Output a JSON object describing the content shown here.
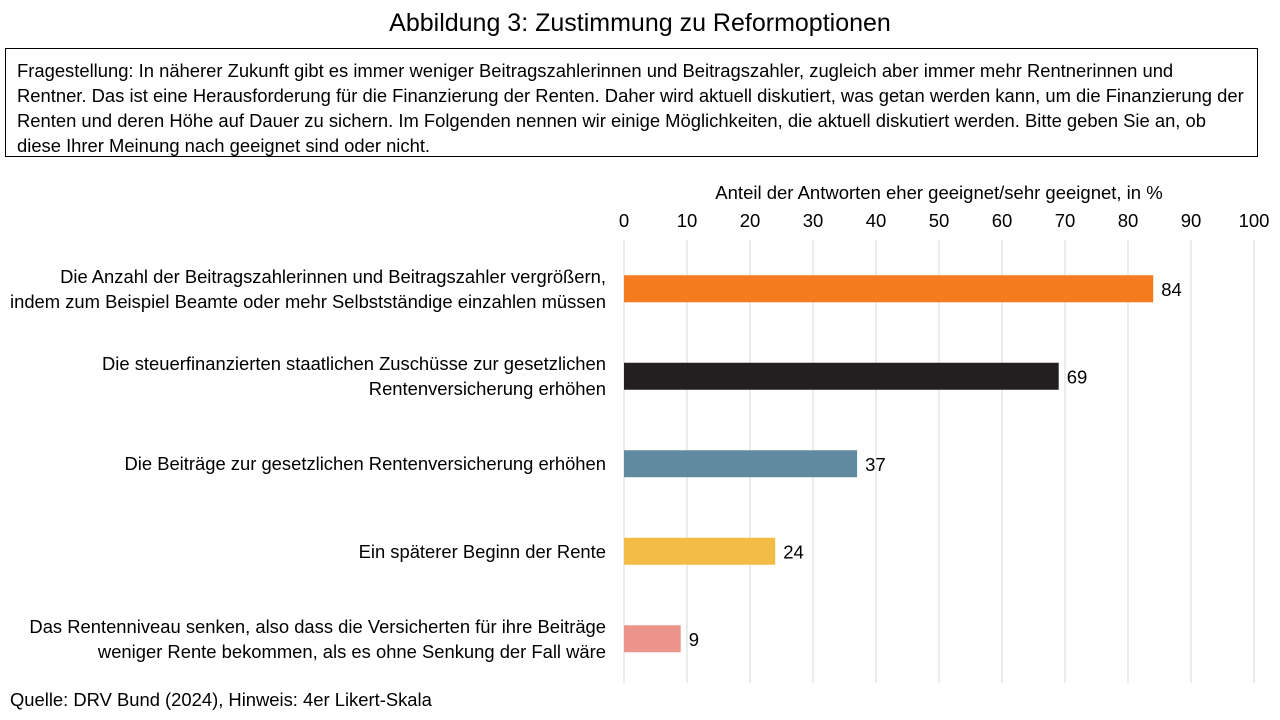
{
  "title": "Abbildung 3: Zustimmung zu Reformoptionen",
  "question": "Fragestellung: In näherer Zukunft gibt es immer weniger Beitragszahlerinnen und Beitragszahler, zugleich aber immer mehr Rentnerinnen und Rentner. Das ist eine Herausforderung für die Finanzierung der Renten. Daher wird aktuell diskutiert, was getan werden kann, um die Finanzierung der Renten und deren Höhe auf Dauer zu sichern. Im Folgenden nennen wir einige Möglichkeiten, die aktuell diskutiert werden. Bitte geben Sie an, ob diese Ihrer Meinung nach geeignet sind oder nicht.",
  "source": "Quelle: DRV Bund (2024), Hinweis: 4er Likert-Skala",
  "chart_data": {
    "type": "bar",
    "orientation": "horizontal",
    "xlabel": "Anteil der Antworten eher geeignet/sehr geeignet, in %",
    "xlim": [
      0,
      100
    ],
    "ticks": [
      0,
      10,
      20,
      30,
      40,
      50,
      60,
      70,
      80,
      90,
      100
    ],
    "grid": true,
    "categories": [
      "Die Anzahl der Beitragszahlerinnen und Beitragszahler vergrößern, indem zum Beispiel Beamte oder mehr Selbstständige einzahlen müssen",
      "Die steuerfinanzierten staatlichen Zuschüsse zur gesetzlichen Rentenversicherung erhöhen",
      "Die Beiträge zur gesetzlichen Rentenversicherung erhöhen",
      "Ein späterer Beginn der Rente",
      "Das Rentenniveau senken, also dass die Versicherten für ihre Beiträge weniger Rente bekommen, als es ohne Senkung der Fall wäre"
    ],
    "values": [
      84,
      69,
      37,
      24,
      9
    ],
    "colors": [
      "#F47B20",
      "#231F20",
      "#5F8AA0",
      "#F2BC45",
      "#EC938C"
    ]
  }
}
